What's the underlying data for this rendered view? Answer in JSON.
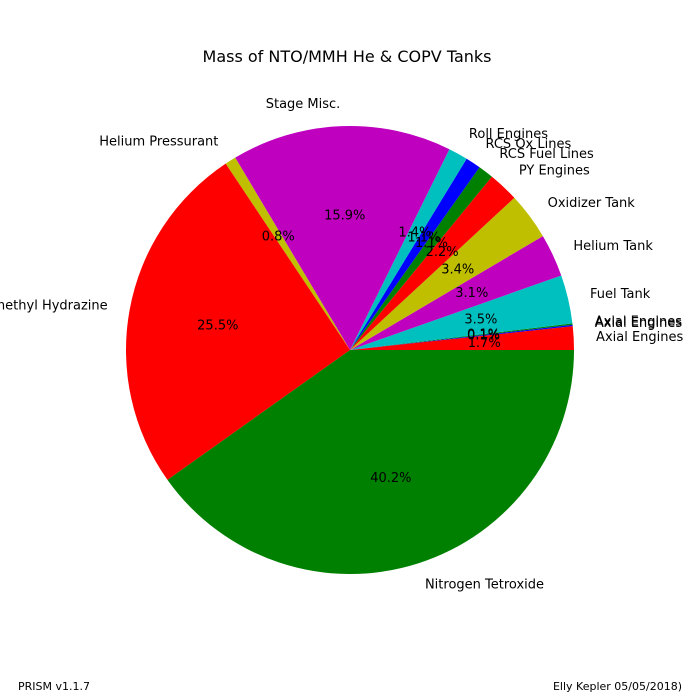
{
  "chart_data": {
    "type": "pie",
    "title": "Mass of NTO/MMH He & COPV Tanks",
    "start_angle_deg": 0,
    "direction": "counterclockwise",
    "slices": [
      {
        "label": "Axial Engines",
        "value": 1.7,
        "pct_label": "1.7%",
        "color": "#ff0000"
      },
      {
        "label": "Axial Engines",
        "value": 0.1,
        "pct_label": "0.1%",
        "color": "#0000ff"
      },
      {
        "label": "Axial Engines",
        "value": 0.1,
        "pct_label": "0.1%",
        "color": "#008000"
      },
      {
        "label": "Fuel Tank",
        "value": 3.5,
        "pct_label": "3.5%",
        "color": "#00bfbf"
      },
      {
        "label": "Helium Tank",
        "value": 3.1,
        "pct_label": "3.1%",
        "color": "#bf00bf"
      },
      {
        "label": "Oxidizer Tank",
        "value": 3.4,
        "pct_label": "3.4%",
        "color": "#bfbf00"
      },
      {
        "label": "PY Engines",
        "value": 2.2,
        "pct_label": "2.2%",
        "color": "#ff0000"
      },
      {
        "label": "RCS Fuel Lines",
        "value": 1.1,
        "pct_label": "1.1%",
        "color": "#008000"
      },
      {
        "label": "RCS Ox Lines",
        "value": 1.1,
        "pct_label": "1.1%",
        "color": "#0000ff"
      },
      {
        "label": "Roll Engines",
        "value": 1.4,
        "pct_label": "1.4%",
        "color": "#00bfbf"
      },
      {
        "label": "Stage Misc.",
        "value": 15.9,
        "pct_label": "15.9%",
        "color": "#bf00bf"
      },
      {
        "label": "Helium Pressurant",
        "value": 0.8,
        "pct_label": "0.8%",
        "color": "#bfbf00"
      },
      {
        "label": "Monomethyl Hydrazine",
        "value": 25.5,
        "pct_label": "25.5%",
        "color": "#ff0000"
      },
      {
        "label": "Nitrogen Tetroxide",
        "value": 40.2,
        "pct_label": "40.2%",
        "color": "#008000"
      }
    ]
  },
  "footer": {
    "left": "PRISM v1.1.7",
    "right": "Elly Kepler 05/05/2018)"
  }
}
